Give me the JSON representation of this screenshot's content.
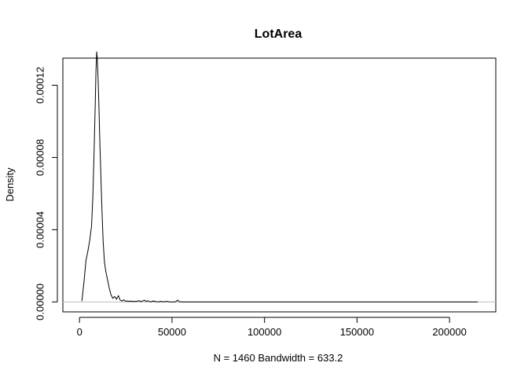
{
  "chart_data": {
    "type": "line",
    "title": "LotArea",
    "xlabel": "N = 1460   Bandwidth = 633.2",
    "ylabel": "Density",
    "xlim": [
      -9000,
      225000
    ],
    "ylim": [
      -5.5e-06,
      0.000135
    ],
    "x_ticks": [
      0,
      50000,
      100000,
      150000,
      200000
    ],
    "x_tick_labels": [
      "0",
      "50000",
      "100000",
      "150000",
      "200000"
    ],
    "y_ticks": [
      0,
      4e-05,
      8e-05,
      0.00012
    ],
    "y_tick_labels": [
      "0.00000",
      "0.00004",
      "0.00008",
      "0.00012"
    ],
    "grid": false,
    "baseline": 0,
    "series": [
      {
        "x": [
          1300,
          2500,
          3500,
          4500,
          5500,
          6500,
          7200,
          7800,
          8400,
          8900,
          9300,
          9600,
          10000,
          10500,
          11000,
          11600,
          12200,
          12800,
          13500,
          14200,
          15000,
          16000,
          17000,
          18000,
          19000,
          20000,
          21000,
          22000,
          23000,
          24000,
          25000,
          26000,
          27000,
          28000,
          29000,
          30000,
          31000,
          32000,
          33000,
          34000,
          35000,
          36000,
          37000,
          38000,
          39000,
          40000,
          41000,
          42000,
          43000,
          44000,
          45000,
          46000,
          47000,
          48000,
          49000,
          50000,
          51000,
          52000,
          53000,
          54000,
          56000,
          60000,
          80000,
          100000,
          120000,
          140000,
          160000,
          180000,
          200000,
          215245
        ],
        "y": [
          5e-07,
          1.2e-05,
          2.3e-05,
          2.8e-05,
          3.4e-05,
          4.2e-05,
          5.8e-05,
          8e-05,
          0.000105,
          0.000128,
          0.0001385,
          0.000135,
          0.000125,
          0.000108,
          8.8e-05,
          6.8e-05,
          4.9e-05,
          3.3e-05,
          2.2e-05,
          1.7e-05,
          1.3e-05,
          8e-06,
          4e-06,
          2e-06,
          3e-06,
          1.5e-06,
          3.5e-06,
          1e-06,
          5e-07,
          1.2e-06,
          3e-07,
          6e-07,
          3e-07,
          5e-07,
          2e-07,
          4e-07,
          3e-07,
          8e-07,
          2e-07,
          5e-07,
          1e-06,
          3e-07,
          7e-07,
          1e-07,
          2e-07,
          6e-07,
          2e-07,
          1e-07,
          1e-07,
          3e-07,
          1e-07,
          1e-07,
          4e-07,
          1e-07,
          0.0,
          0.0,
          0.0,
          1e-07,
          1e-06,
          1e-07,
          0.0,
          0.0,
          0.0,
          0.0,
          0.0,
          0.0,
          0.0,
          0.0,
          0.0,
          0.0
        ]
      }
    ],
    "colors": {
      "line": "#000000",
      "baseline": "#bebebe",
      "frame": "#000000"
    }
  }
}
